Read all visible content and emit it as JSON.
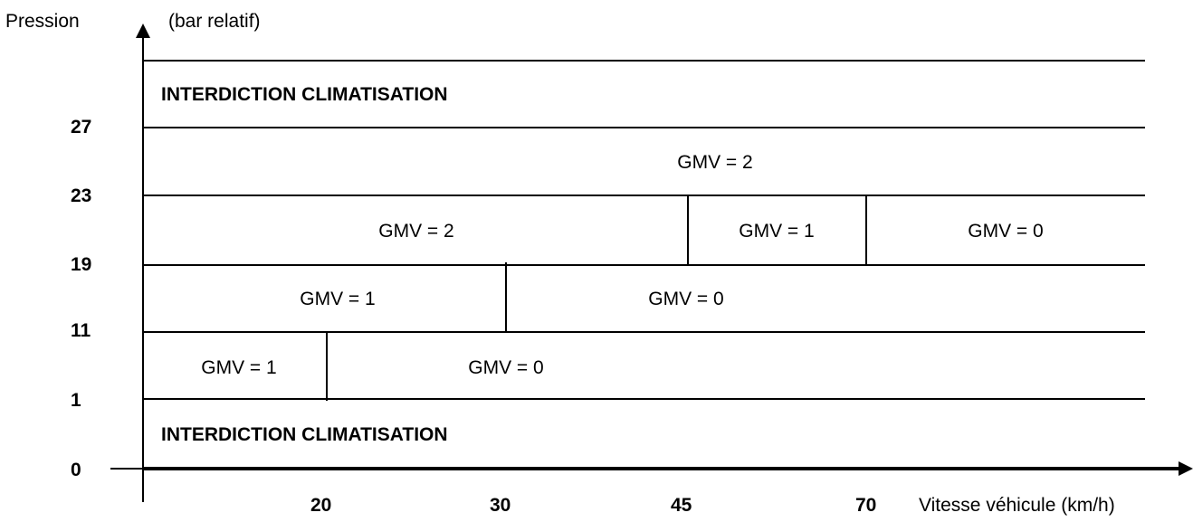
{
  "colors": {
    "line": "#000000",
    "background": "#ffffff"
  },
  "axes": {
    "y_title": "Pression",
    "y_unit": "(bar relatif)",
    "x_title": "Vitesse véhicule (km/h)",
    "y_ticks": [
      "27",
      "23",
      "19",
      "11",
      "1",
      "0"
    ],
    "x_ticks": [
      "20",
      "30",
      "45",
      "70"
    ]
  },
  "zones": {
    "top": "INTERDICTION CLIMATISATION",
    "band_23_27": "GMV = 2",
    "band_19_23_low": "GMV = 2",
    "band_19_23_mid": "GMV = 1",
    "band_19_23_high": "GMV = 0",
    "band_11_19_low": "GMV = 1",
    "band_11_19_high": "GMV = 0",
    "band_1_11_low": "GMV = 1",
    "band_1_11_high": "GMV = 0",
    "bottom": "INTERDICTION CLIMATISATION"
  }
}
